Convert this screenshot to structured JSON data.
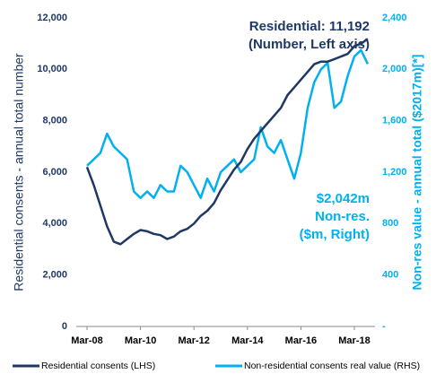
{
  "chart_data": {
    "type": "line",
    "y_label": "Residential consents - annual total number",
    "y2_label": "Non-res value - annual total ($2017m)[*]",
    "annotations": [
      "Residential: 11,192",
      "(Number, Left axis)",
      "$2,042m",
      "Non-res.",
      "($m, Right)"
    ],
    "categories": [
      "Mar-08",
      null,
      null,
      null,
      null,
      null,
      null,
      null,
      "Mar-10",
      null,
      null,
      null,
      null,
      null,
      null,
      null,
      "Mar-12",
      null,
      null,
      null,
      null,
      null,
      null,
      null,
      "Mar-14",
      null,
      null,
      null,
      null,
      null,
      null,
      null,
      "Mar-16",
      null,
      null,
      null,
      null,
      null,
      null,
      null,
      "Mar-18",
      null,
      null
    ],
    "series": [
      {
        "name": "Residential consents (LHS)",
        "color": "#1f3864",
        "values": [
          6200,
          5500,
          4700,
          3900,
          3300,
          3200,
          3400,
          3600,
          3750,
          3700,
          3600,
          3550,
          3400,
          3500,
          3700,
          3800,
          4000,
          4300,
          4500,
          4800,
          5300,
          5700,
          6100,
          6400,
          6900,
          7300,
          7600,
          7900,
          8200,
          8500,
          9000,
          9300,
          9600,
          9900,
          10200,
          10300,
          10300,
          10400,
          10500,
          10600,
          10900,
          11000,
          11192
        ]
      },
      {
        "name": "Non-residential consents real value (RHS)",
        "color": "#00b0f0",
        "axis": "y2",
        "values": [
          1250,
          1300,
          1350,
          1500,
          1400,
          1350,
          1300,
          1050,
          1000,
          1050,
          1000,
          1100,
          1050,
          1050,
          1250,
          1200,
          1100,
          1000,
          1150,
          1050,
          1200,
          1250,
          1300,
          1200,
          1250,
          1300,
          1550,
          1400,
          1350,
          1450,
          1300,
          1150,
          1350,
          1700,
          1900,
          2000,
          2050,
          1700,
          1750,
          1950,
          2100,
          2150,
          2042
        ]
      }
    ],
    "ylim": [
      0,
      12000
    ],
    "yticks": [
      0,
      {
        "value": 2000,
        "label": "2,000"
      },
      {
        "value": 4000,
        "label": "4,000"
      },
      {
        "value": 6000,
        "label": "6,000"
      },
      {
        "value": 8000,
        "label": "8,000"
      },
      {
        "value": 10000,
        "label": "10,000"
      },
      {
        "value": 12000,
        "label": "12,000"
      }
    ],
    "y2lim": [
      0,
      2400
    ],
    "y2ticks": [
      {
        "value": 0,
        "label": "-"
      },
      400,
      800,
      {
        "value": 1200,
        "label": "1,200"
      },
      {
        "value": 1600,
        "label": "1,600"
      },
      {
        "value": 2000,
        "label": "2,000"
      },
      {
        "value": 2400,
        "label": "2,400"
      }
    ],
    "legend": "bottom"
  }
}
